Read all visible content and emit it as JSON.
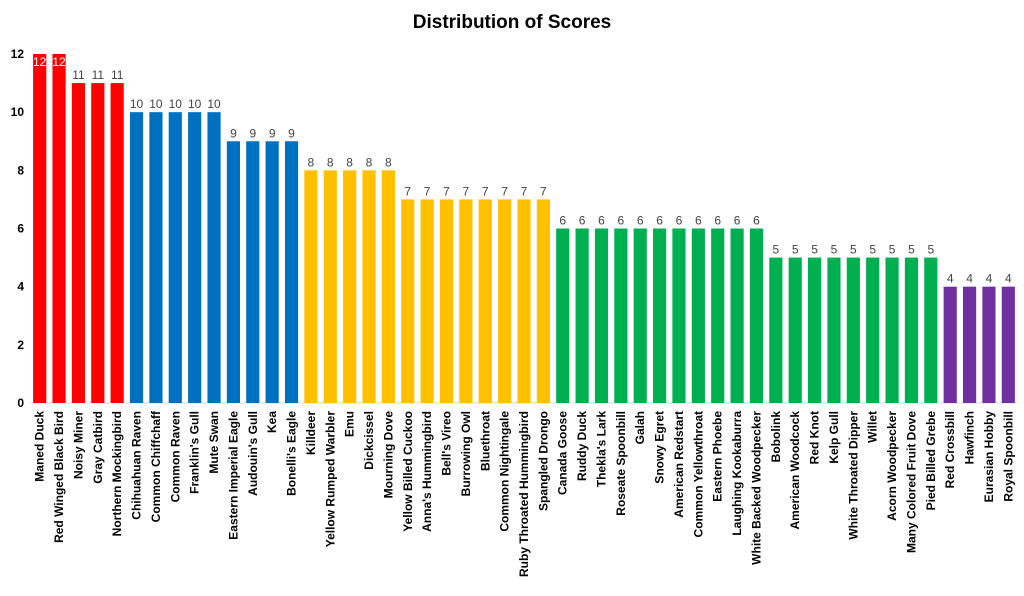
{
  "chart_data": {
    "type": "bar",
    "title": "Distribution of Scores",
    "xlabel": "",
    "ylabel": "",
    "ylim": [
      0,
      12
    ],
    "yticks": [
      0,
      2,
      4,
      6,
      8,
      10,
      12
    ],
    "grid": false,
    "legend": "none",
    "categories": [
      "Maned Duck",
      "Red Winged Black Bird",
      "Noisy Miner",
      "Gray Catbird",
      "Northern Mockingbird",
      "Chihuahuan Raven",
      "Common Chiffchaff",
      "Common Raven",
      "Franklin's Gull",
      "Mute Swan",
      "Eastern Imperial Eagle",
      "Audouin's Gull",
      "Kea",
      "Bonelli's Eagle",
      "Killdeer",
      "Yellow Rumped Warbler",
      "Emu",
      "Dickcissel",
      "Mourning Dove",
      "Yellow Billed Cuckoo",
      "Anna's Hummingbird",
      "Bell's Vireo",
      "Burrowing Owl",
      "Bluethroat",
      "Common Nightingale",
      "Ruby Throated Hummingbird",
      "Spangled Drongo",
      "Canada Goose",
      "Ruddy Duck",
      "Thekla's Lark",
      "Roseate Spoonbill",
      "Galah",
      "Snowy Egret",
      "American Redstart",
      "Common Yellowthroat",
      "Eastern Phoebe",
      "Laughing Kookaburra",
      "White Backed Woodpecker",
      "Bobolink",
      "American Woodcock",
      "Red Knot",
      "Kelp Gull",
      "White Throated Dipper",
      "Willet",
      "Acorn Woodpecker",
      "Many Colored Fruit Dove",
      "Pied Billed Grebe",
      "Red Crossbill",
      "Hawfinch",
      "Eurasian Hobby",
      "Royal Spoonbill"
    ],
    "values": [
      12,
      12,
      11,
      11,
      11,
      10,
      10,
      10,
      10,
      10,
      9,
      9,
      9,
      9,
      8,
      8,
      8,
      8,
      8,
      7,
      7,
      7,
      7,
      7,
      7,
      7,
      7,
      6,
      6,
      6,
      6,
      6,
      6,
      6,
      6,
      6,
      6,
      6,
      5,
      5,
      5,
      5,
      5,
      5,
      5,
      5,
      5,
      4,
      4,
      4,
      4
    ],
    "colors": [
      "#ff0000",
      "#ff0000",
      "#ff0000",
      "#ff0000",
      "#ff0000",
      "#0070c0",
      "#0070c0",
      "#0070c0",
      "#0070c0",
      "#0070c0",
      "#0070c0",
      "#0070c0",
      "#0070c0",
      "#0070c0",
      "#ffc000",
      "#ffc000",
      "#ffc000",
      "#ffc000",
      "#ffc000",
      "#ffc000",
      "#ffc000",
      "#ffc000",
      "#ffc000",
      "#ffc000",
      "#ffc000",
      "#ffc000",
      "#ffc000",
      "#00b050",
      "#00b050",
      "#00b050",
      "#00b050",
      "#00b050",
      "#00b050",
      "#00b050",
      "#00b050",
      "#00b050",
      "#00b050",
      "#00b050",
      "#00b050",
      "#00b050",
      "#00b050",
      "#00b050",
      "#00b050",
      "#00b050",
      "#00b050",
      "#00b050",
      "#00b050",
      "#7030a0",
      "#7030a0",
      "#7030a0",
      "#7030a0"
    ]
  }
}
